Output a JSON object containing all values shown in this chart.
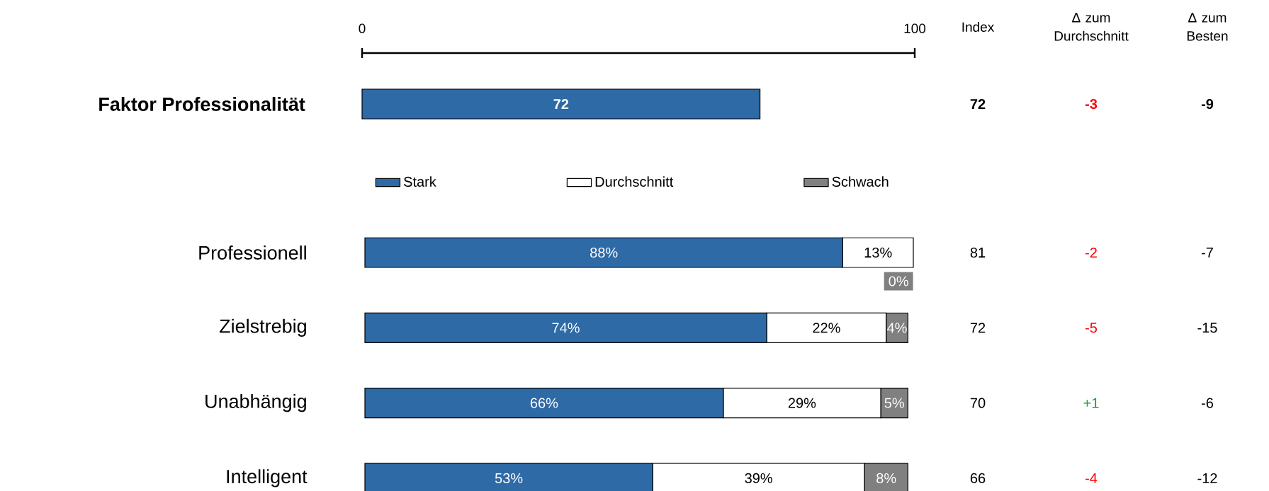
{
  "chart_data": [
    {
      "type": "bar",
      "orientation": "horizontal",
      "categories": [
        "Faktor Professionalität"
      ],
      "values": [
        72
      ],
      "color": "#2e6aa6",
      "xlim": [
        0,
        100
      ],
      "xticks": [
        0,
        100
      ],
      "data_labels": true,
      "annotations": [
        "Index",
        "Δ zum Durchschnitt",
        "Δ zum Besten",
        "72",
        "-3",
        "-9"
      ]
    },
    {
      "type": "bar",
      "orientation": "horizontal",
      "stacked": true,
      "legend": "top",
      "categories": [
        "Professionell",
        "Zielstrebig",
        "Unabhängig",
        "Intelligent"
      ],
      "series": [
        {
          "name": "Stark",
          "color": "#2e6aa6",
          "values": [
            88,
            74,
            66,
            53
          ],
          "value_labels": [
            "88%",
            "74%",
            "66%",
            "53%"
          ]
        },
        {
          "name": "Durchschnitt",
          "color": "#ffffff",
          "values": [
            13,
            22,
            29,
            39
          ],
          "value_labels": [
            "13%",
            "22%",
            "29%",
            "39%"
          ]
        },
        {
          "name": "Schwach",
          "color": "#808080",
          "values": [
            0,
            4,
            5,
            8
          ],
          "value_labels": [
            "0%",
            "4%",
            "5%",
            "8%"
          ]
        }
      ],
      "annotations": [
        "81",
        "-2",
        "-7",
        "72",
        "-5",
        "-15",
        "70",
        "+1",
        "-6",
        "66",
        "-4",
        "-12"
      ]
    }
  ]
}
